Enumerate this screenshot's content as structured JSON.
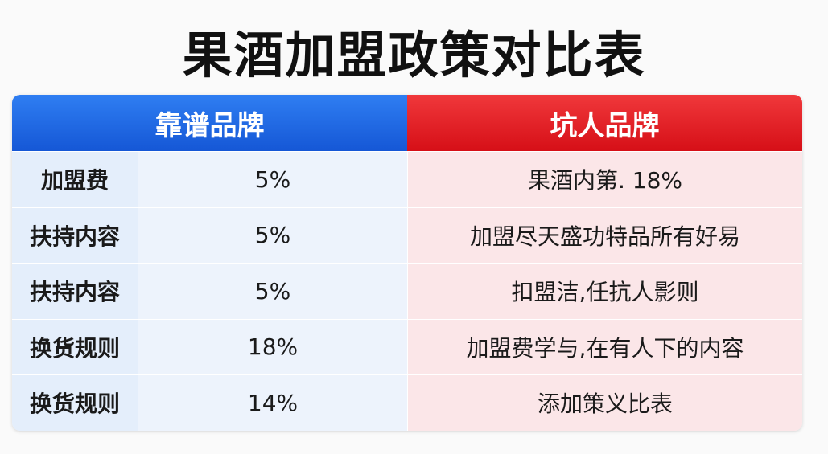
{
  "title": "果酒加盟政策对比表",
  "table": {
    "header": [
      "靠谱品牌",
      "坑人品牌"
    ],
    "rows": [
      [
        "加盟费",
        "5%",
        "果酒内第. 18%"
      ],
      [
        "扶持内容",
        "5%",
        "加盟尽天盛功特品所有好易"
      ],
      [
        "扶持内容",
        "5%",
        "扣盟洁,任抗人影则"
      ],
      [
        "换货规则",
        "18%",
        "加盟费学与,在有人下的内容"
      ],
      [
        "换货规则",
        "14%",
        "添加策义比表"
      ]
    ]
  }
}
